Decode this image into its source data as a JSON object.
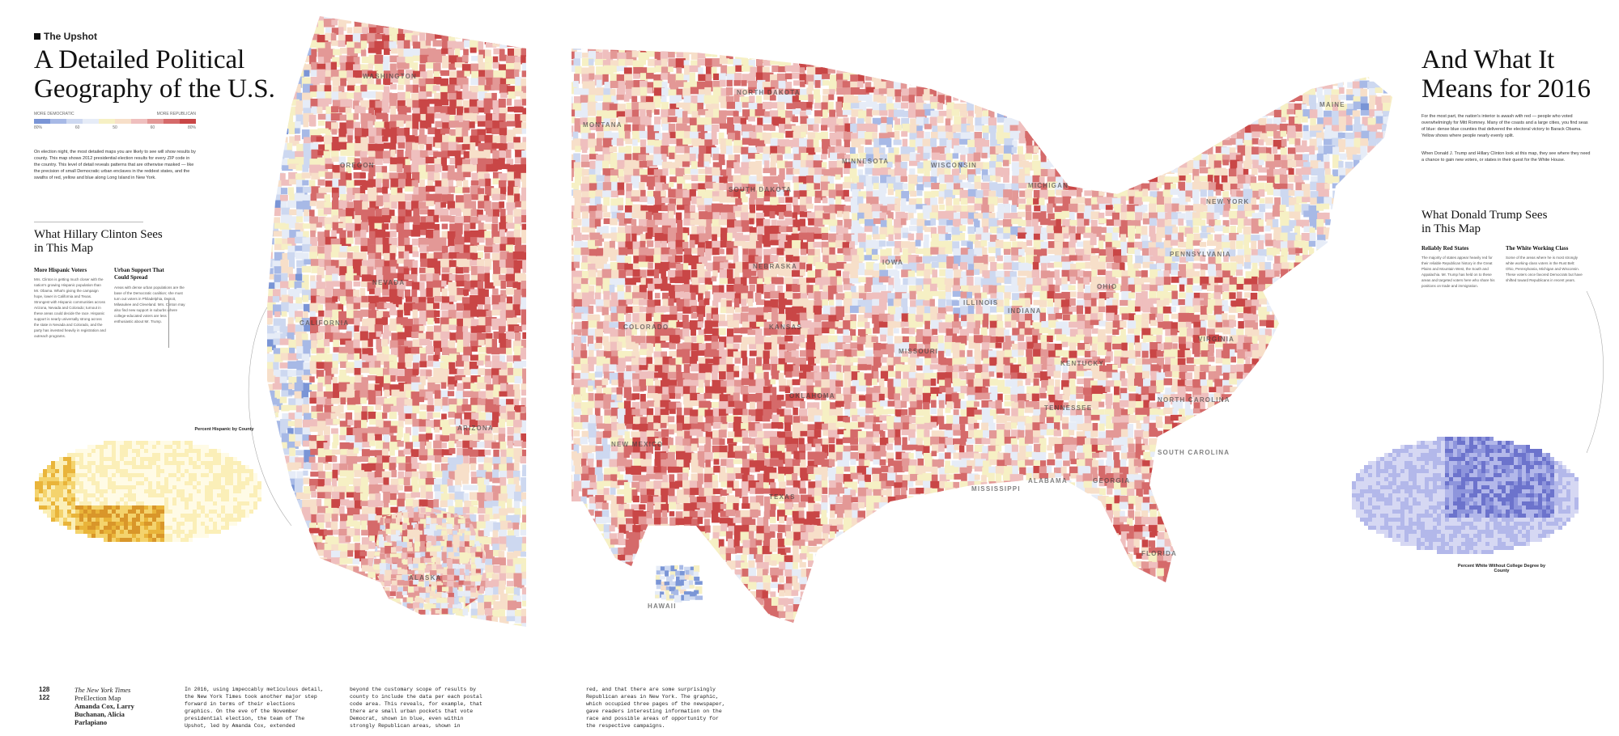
{
  "brand": {
    "name": "The Upshot",
    "logo_icon": "upshot-square-icon"
  },
  "left_title": "A Detailed Political Geography of the U.S.",
  "right_title": "And What It Means for 2016",
  "legend": {
    "left_label": "MORE DEMOCRATIC",
    "right_label": "MORE REPUBLICAN",
    "colors": [
      "#7a95d6",
      "#a7b9e6",
      "#cdd8f0",
      "#e6ecf7",
      "#f6f0c4",
      "#f7dfc9",
      "#efbfbe",
      "#e39896",
      "#d56a6a",
      "#c94646"
    ],
    "percent_labels": [
      "80%",
      "60",
      "50",
      "60",
      "80%"
    ]
  },
  "intro": "On election night, the most detailed maps you are likely to see will show results by county. This map shows 2012 presidential election results for every ZIP code in the country. This level of detail reveals patterns that are otherwise masked — like the precision of small Democratic urban enclaves in the reddest states, and the swaths of red, yellow and blue along Long Island in New York.",
  "left_section": {
    "heading": "What Hillary Clinton Sees in This Map",
    "col1_head": "More Hispanic Voters",
    "col1_text": "Mrs. Clinton is getting much closer with the nation's growing Hispanic population than Mr. Obama. What's giving the campaign hope, lower in California and Texas. Strongest with Hispanic communities across Arizona, Nevada and Colorado; turnout in these areas could decide the race. Hispanic support is nearly universally strong across the state in Nevada and Colorado, and the party has invested heavily in registration and outreach programs.",
    "col2_head": "Urban Support That Could Spread",
    "col2_text": "Areas with dense urban populations are the base of the Democratic coalition; she must turn out voters in Philadelphia, Detroit, Milwaukee and Cleveland. Mrs. Clinton may also find new support in suburbs where college-educated voters are less enthusiastic about Mr. Trump."
  },
  "right_intro": "For the most part, the nation's interior is awash with red — people who voted overwhelmingly for Mitt Romney. Many of the coasts and a large cities, you find seas of blue: dense blue counties that delivered the electoral victory to Barack Obama. Yellow shows where people nearly evenly split.",
  "right_intro2": "When Donald J. Trump and Hillary Clinton look at this map, they see where they need a chance to gain new voters, or states in their quest for the White House.",
  "right_section": {
    "heading": "What Donald Trump Sees in This Map",
    "col1_head": "Reliably Red States",
    "col1_text": "The majority of states appear heavily red for their reliable Republican history in the Great Plains and Mountain West, the South and Appalachia. Mr. Trump has held on to these areas and targeted voters here who share his positions on trade and immigration.",
    "col2_head": "The White Working Class",
    "col2_text": "Some of the areas where he is most strongly white working-class voters in the Rust Belt: Ohio, Pennsylvania, Michigan and Wisconsin. These voters once favored Democrats but have shifted toward Republicans in recent years."
  },
  "inset_left_title": "Percent Hispanic by County",
  "inset_right_title": "Percent White Without College Degree by County",
  "states": [
    {
      "name": "WASHINGTON"
    },
    {
      "name": "OREGON"
    },
    {
      "name": "NEVADA"
    },
    {
      "name": "CALIFORNIA"
    },
    {
      "name": "ARIZONA"
    },
    {
      "name": "MONTANA"
    },
    {
      "name": "NORTH DAKOTA"
    },
    {
      "name": "SOUTH DAKOTA"
    },
    {
      "name": "MINNESOTA"
    },
    {
      "name": "WISCONSIN"
    },
    {
      "name": "MICHIGAN"
    },
    {
      "name": "IOWA"
    },
    {
      "name": "NEBRASKA"
    },
    {
      "name": "COLORADO"
    },
    {
      "name": "KANSAS"
    },
    {
      "name": "NEW MEXICO"
    },
    {
      "name": "OKLAHOMA"
    },
    {
      "name": "TEXAS"
    },
    {
      "name": "MISSOURI"
    },
    {
      "name": "ILLINOIS"
    },
    {
      "name": "INDIANA"
    },
    {
      "name": "OHIO"
    },
    {
      "name": "KENTUCKY"
    },
    {
      "name": "TENNESSEE"
    },
    {
      "name": "MISSISSIPPI"
    },
    {
      "name": "ALABAMA"
    },
    {
      "name": "GEORGIA"
    },
    {
      "name": "FLORIDA"
    },
    {
      "name": "PENNSYLVANIA"
    },
    {
      "name": "NEW YORK"
    },
    {
      "name": "VIRGINIA"
    },
    {
      "name": "NORTH CAROLINA"
    },
    {
      "name": "SOUTH CAROLINA"
    },
    {
      "name": "MAINE"
    },
    {
      "name": "ALASKA"
    },
    {
      "name": "HAWAII"
    }
  ],
  "footer": {
    "pages": "128\n122",
    "publication": "The New York Times",
    "project": "PreElection Map",
    "authors": "Amanda Cox, Larry Buchanan, Alicia Parlapiano",
    "col1": "In 2016, using impeccably meticulous detail, the New York Times took another major step forward in terms of their elections graphics. On the eve of the November presidential election, the team of The Upshot, led by Amanda Cox, extended",
    "col2": "beyond the customary scope of results by county to include the data per each postal code area. This reveals, for example, that there are small urban pockets that vote Democrat, shown in blue, even within strongly Republican areas, shown in",
    "col3": "red, and that there are some surprisingly Republican areas in New York. The graphic, which occupied three pages of the newspaper, gave readers interesting information on the race and possible areas of opportunity for the respective campaigns."
  }
}
